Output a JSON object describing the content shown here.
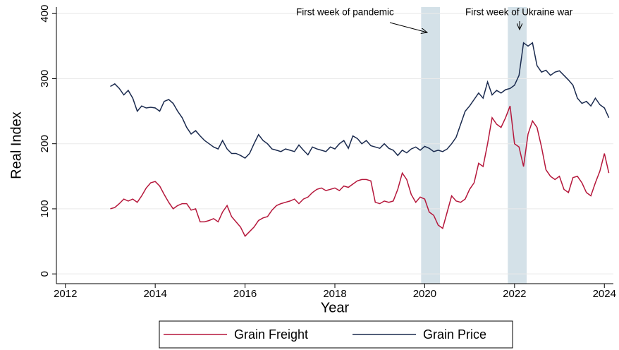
{
  "chart_data": {
    "type": "line",
    "x_label": "Year",
    "y_label": "Real Index",
    "x": [
      2013.0,
      2013.1,
      2013.2,
      2013.3,
      2013.4,
      2013.5,
      2013.6,
      2013.7,
      2013.8,
      2013.9,
      2014.0,
      2014.1,
      2014.2,
      2014.3,
      2014.4,
      2014.5,
      2014.6,
      2014.7,
      2014.8,
      2014.9,
      2015.0,
      2015.1,
      2015.2,
      2015.3,
      2015.4,
      2015.5,
      2015.6,
      2015.7,
      2015.8,
      2015.9,
      2016.0,
      2016.1,
      2016.2,
      2016.3,
      2016.4,
      2016.5,
      2016.6,
      2016.7,
      2016.8,
      2016.9,
      2017.0,
      2017.1,
      2017.2,
      2017.3,
      2017.4,
      2017.5,
      2017.6,
      2017.7,
      2017.8,
      2017.9,
      2018.0,
      2018.1,
      2018.2,
      2018.3,
      2018.4,
      2018.5,
      2018.6,
      2018.7,
      2018.8,
      2018.9,
      2019.0,
      2019.1,
      2019.2,
      2019.3,
      2019.4,
      2019.5,
      2019.6,
      2019.7,
      2019.8,
      2019.9,
      2020.0,
      2020.1,
      2020.2,
      2020.3,
      2020.4,
      2020.5,
      2020.6,
      2020.7,
      2020.8,
      2020.9,
      2021.0,
      2021.1,
      2021.2,
      2021.3,
      2021.4,
      2021.5,
      2021.6,
      2021.7,
      2021.8,
      2021.9,
      2022.0,
      2022.1,
      2022.2,
      2022.3,
      2022.4,
      2022.5,
      2022.6,
      2022.7,
      2022.8,
      2022.9,
      2023.0,
      2023.1,
      2023.2,
      2023.3,
      2023.4,
      2023.5,
      2023.6,
      2023.7,
      2023.8,
      2023.9,
      2024.0,
      2024.1
    ],
    "series": [
      {
        "name": "Grain Freight",
        "color": "#b5173b",
        "values": [
          100,
          102,
          108,
          115,
          112,
          115,
          110,
          120,
          132,
          140,
          142,
          135,
          122,
          110,
          100,
          105,
          108,
          108,
          98,
          100,
          80,
          80,
          82,
          85,
          80,
          95,
          105,
          88,
          80,
          72,
          58,
          65,
          72,
          82,
          86,
          88,
          98,
          105,
          108,
          110,
          112,
          115,
          108,
          115,
          118,
          125,
          130,
          132,
          128,
          130,
          132,
          128,
          135,
          133,
          138,
          143,
          145,
          145,
          143,
          110,
          108,
          112,
          110,
          112,
          130,
          155,
          145,
          122,
          110,
          118,
          115,
          95,
          90,
          75,
          70,
          95,
          120,
          112,
          110,
          115,
          130,
          140,
          170,
          165,
          200,
          240,
          230,
          225,
          240,
          258,
          200,
          195,
          165,
          215,
          235,
          225,
          195,
          160,
          150,
          145,
          150,
          130,
          125,
          148,
          150,
          140,
          125,
          120,
          140,
          158,
          185,
          155
        ]
      },
      {
        "name": "Grain Price",
        "color": "#1a2a4e",
        "values": [
          288,
          292,
          285,
          275,
          282,
          270,
          250,
          258,
          255,
          256,
          255,
          250,
          265,
          268,
          262,
          250,
          240,
          225,
          215,
          220,
          212,
          205,
          200,
          195,
          192,
          205,
          192,
          185,
          185,
          182,
          178,
          185,
          200,
          214,
          205,
          200,
          192,
          190,
          188,
          192,
          190,
          188,
          198,
          190,
          183,
          195,
          192,
          190,
          188,
          195,
          192,
          200,
          205,
          193,
          212,
          208,
          200,
          205,
          197,
          195,
          193,
          200,
          193,
          190,
          182,
          190,
          186,
          192,
          195,
          190,
          196,
          193,
          188,
          190,
          188,
          192,
          200,
          210,
          230,
          250,
          258,
          268,
          278,
          270,
          295,
          275,
          282,
          278,
          283,
          285,
          290,
          305,
          355,
          350,
          355,
          320,
          310,
          313,
          305,
          310,
          312,
          305,
          298,
          290,
          270,
          262,
          265,
          258,
          270,
          260,
          255,
          240
        ]
      }
    ],
    "xlim": [
      2011.8,
      2024.2
    ],
    "xticks": [
      2012,
      2014,
      2016,
      2018,
      2020,
      2022,
      2024
    ],
    "ylim": [
      -15,
      410
    ],
    "yticks": [
      0,
      100,
      200,
      300,
      400
    ],
    "grid": true,
    "legend": "bottom",
    "shaded_periods": [
      [
        2019.92,
        2020.34
      ],
      [
        2021.85,
        2022.27
      ]
    ],
    "shade_color": "#d4e1e8",
    "annotations": [
      "First week of pandemic",
      "First week of Ukraine war"
    ]
  }
}
